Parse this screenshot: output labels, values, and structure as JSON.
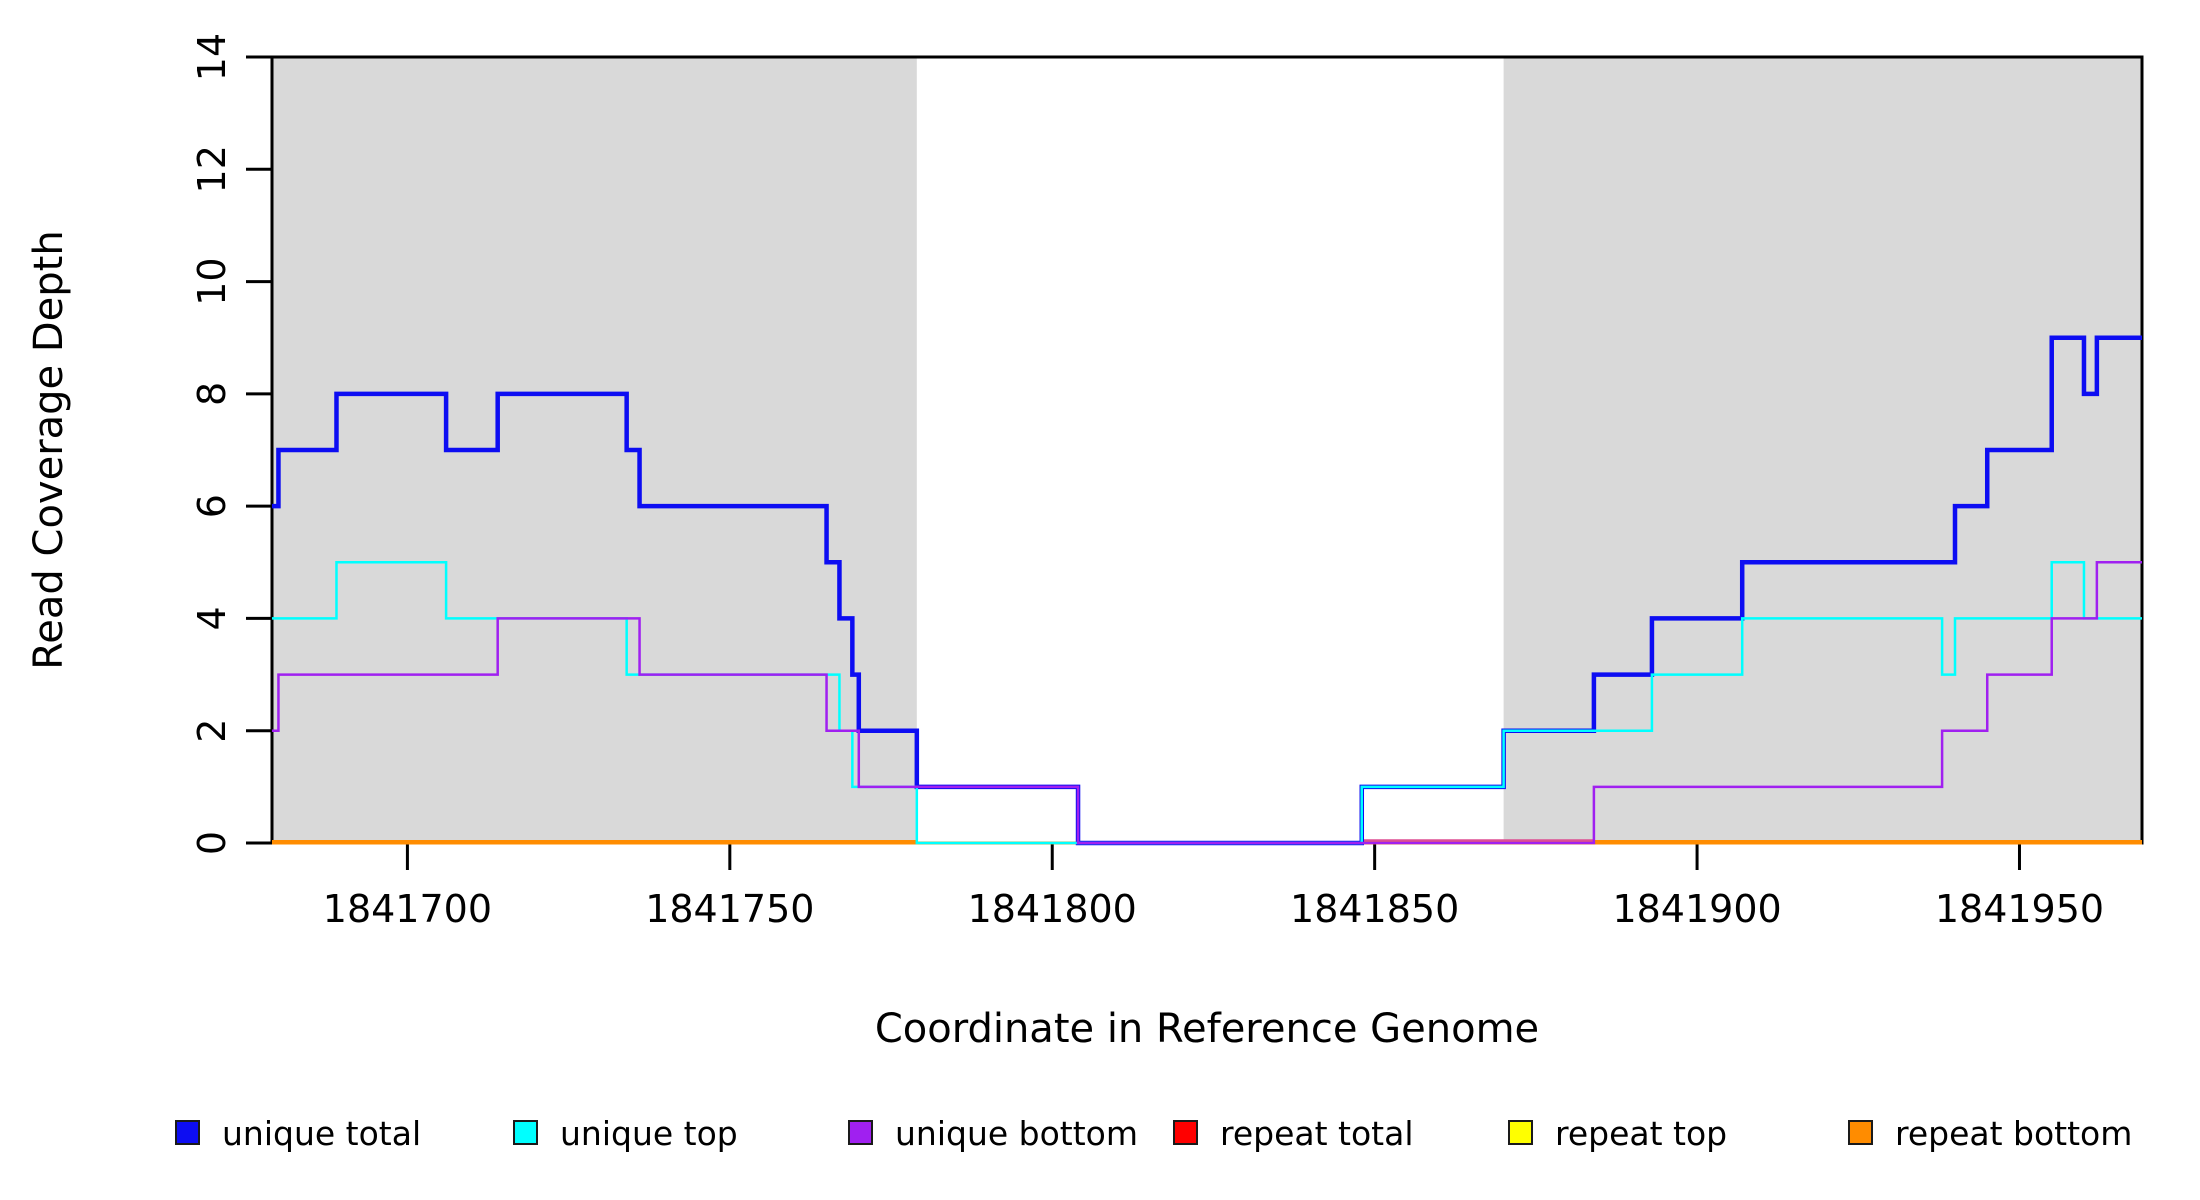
{
  "figure": {
    "title": "",
    "xlabel": "Coordinate in Reference Genome",
    "ylabel": "Read Coverage Depth"
  },
  "chart_data": {
    "type": "line",
    "subtype": "step",
    "title": "",
    "xlabel": "Coordinate in Reference Genome",
    "ylabel": "Read Coverage Depth",
    "xlim": [
      1841679,
      1841969
    ],
    "ylim": [
      0,
      14
    ],
    "xticks": [
      1841700,
      1841750,
      1841800,
      1841850,
      1841900,
      1841950
    ],
    "yticks": [
      0,
      2,
      4,
      6,
      8,
      10,
      12,
      14
    ],
    "grid": false,
    "legend_position": "bottom",
    "shade_color": "#d9d9d9",
    "shaded_regions": [
      {
        "from": 1841679,
        "to": 1841779
      },
      {
        "from": 1841870,
        "to": 1841969
      }
    ],
    "series": [
      {
        "name": "unique total",
        "color": "#0d0df2",
        "line_width": 4.5,
        "z": 4,
        "steps": [
          [
            1841679,
            6
          ],
          [
            1841680,
            7
          ],
          [
            1841689,
            8
          ],
          [
            1841706,
            7
          ],
          [
            1841714,
            8
          ],
          [
            1841734,
            7
          ],
          [
            1841736,
            6
          ],
          [
            1841765,
            5
          ],
          [
            1841767,
            4
          ],
          [
            1841769,
            3
          ],
          [
            1841770,
            2
          ],
          [
            1841779,
            1
          ],
          [
            1841804,
            0
          ],
          [
            1841848,
            1
          ],
          [
            1841870,
            2
          ],
          [
            1841884,
            3
          ],
          [
            1841893,
            4
          ],
          [
            1841907,
            5
          ],
          [
            1841940,
            6
          ],
          [
            1841945,
            7
          ],
          [
            1841955,
            9
          ],
          [
            1841960,
            8
          ],
          [
            1841962,
            9
          ]
        ]
      },
      {
        "name": "unique top",
        "color": "#00ffff",
        "line_width": 2.5,
        "z": 5,
        "steps": [
          [
            1841679,
            4
          ],
          [
            1841689,
            5
          ],
          [
            1841706,
            4
          ],
          [
            1841734,
            3
          ],
          [
            1841767,
            2
          ],
          [
            1841769,
            1
          ],
          [
            1841779,
            0
          ],
          [
            1841848,
            1
          ],
          [
            1841870,
            2
          ],
          [
            1841893,
            3
          ],
          [
            1841907,
            4
          ],
          [
            1841938,
            3
          ],
          [
            1841940,
            4
          ],
          [
            1841955,
            5
          ],
          [
            1841960,
            4
          ]
        ]
      },
      {
        "name": "unique bottom",
        "color": "#a020f0",
        "line_width": 2.5,
        "z": 6,
        "steps": [
          [
            1841679,
            2
          ],
          [
            1841680,
            3
          ],
          [
            1841714,
            4
          ],
          [
            1841736,
            3
          ],
          [
            1841765,
            2
          ],
          [
            1841770,
            1
          ],
          [
            1841804,
            0
          ],
          [
            1841884,
            1
          ],
          [
            1841938,
            2
          ],
          [
            1841945,
            3
          ],
          [
            1841955,
            4
          ],
          [
            1841962,
            5
          ]
        ]
      },
      {
        "name": "repeat total",
        "color": "#ff0000",
        "line_width": 2.5,
        "z": 1,
        "steps": [
          [
            1841679,
            0
          ]
        ]
      },
      {
        "name": "repeat top",
        "color": "#ffff00",
        "line_width": 2.5,
        "z": 2,
        "steps": [
          [
            1841679,
            0
          ]
        ]
      },
      {
        "name": "repeat bottom",
        "color": "#ff8c00",
        "line_width": 3,
        "z": 3,
        "steps": [
          [
            1841679,
            0
          ]
        ]
      }
    ],
    "zero_overlays": [
      {
        "color": "#dd4f93",
        "from": 1841848,
        "to": 1841884,
        "dy": -2.5,
        "width": 2.5
      },
      {
        "color": "#ff8c00",
        "from": 1841679,
        "to": 1841779,
        "dy": -1.5,
        "width": 3
      },
      {
        "color": "#ff8c00",
        "from": 1841884,
        "to": 1841969,
        "dy": -1.5,
        "width": 3
      }
    ],
    "legend": [
      {
        "label": "unique total",
        "color": "#0d0df2"
      },
      {
        "label": "unique top",
        "color": "#00ffff"
      },
      {
        "label": "unique bottom",
        "color": "#a020f0"
      },
      {
        "label": "repeat total",
        "color": "#ff0000"
      },
      {
        "label": "repeat top",
        "color": "#ffff00"
      },
      {
        "label": "repeat bottom",
        "color": "#ff8c00"
      }
    ]
  }
}
